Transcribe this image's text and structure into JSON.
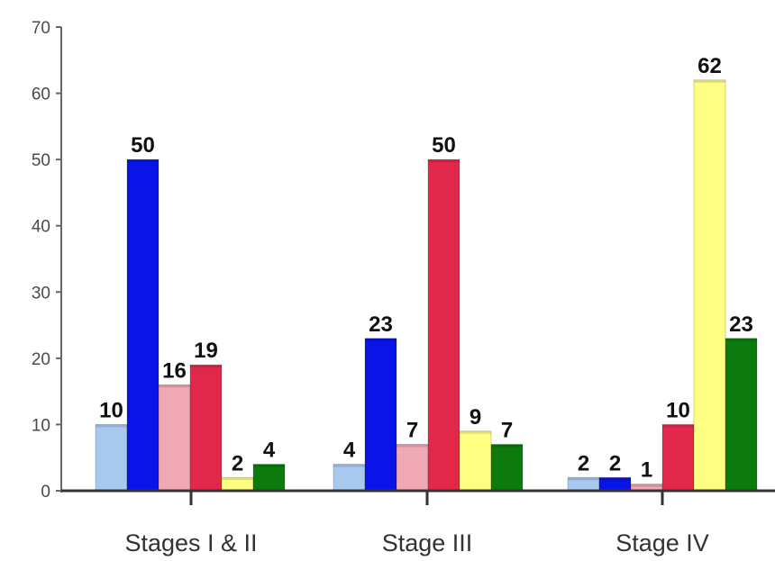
{
  "chart_data": {
    "type": "bar",
    "title": "",
    "xlabel": "",
    "ylabel": "",
    "ylim": [
      0,
      70
    ],
    "yticks": [
      0,
      10,
      20,
      30,
      40,
      50,
      60,
      70
    ],
    "grid": false,
    "categories": [
      "Stages I & II",
      "Stage III",
      "Stage IV"
    ],
    "series": [
      {
        "color": "#a8c8ee",
        "values": [
          10,
          4,
          2
        ]
      },
      {
        "color": "#0a14e6",
        "values": [
          50,
          23,
          2
        ]
      },
      {
        "color": "#f0a8b4",
        "values": [
          16,
          7,
          1
        ]
      },
      {
        "color": "#e2284a",
        "values": [
          19,
          50,
          10
        ]
      },
      {
        "color": "#ffff84",
        "values": [
          2,
          9,
          62
        ]
      },
      {
        "color": "#0c7a0c",
        "values": [
          4,
          7,
          23
        ]
      }
    ]
  }
}
